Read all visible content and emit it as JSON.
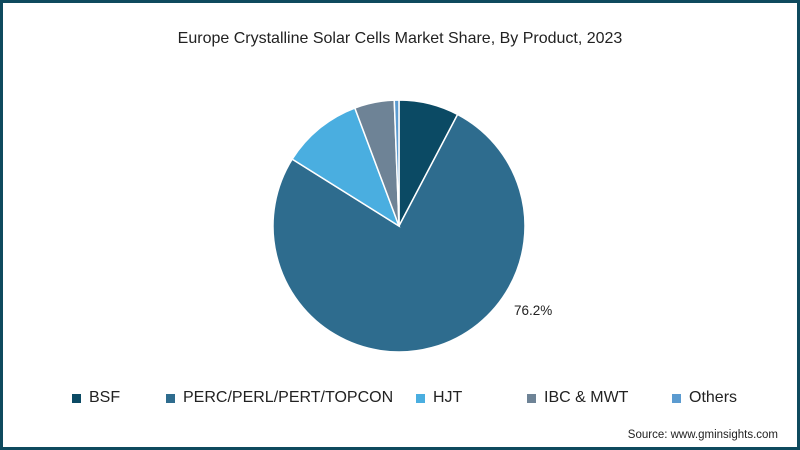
{
  "chart_data": {
    "type": "pie",
    "title": "Europe Crystalline Solar Cells Market Share, By Product, 2023",
    "categories": [
      "BSF",
      "PERC/PERL/PERT/TOPCON",
      "HJT",
      "IBC & MWT",
      "Others"
    ],
    "values": [
      7.7,
      76.2,
      10.4,
      5.1,
      0.6
    ],
    "colors": [
      "#0b4a64",
      "#2e6c8e",
      "#4aaee0",
      "#6e8396",
      "#5b9bd0"
    ],
    "data_labels": [
      {
        "category": "PERC/PERL/PERT/TOPCON",
        "text": "76.2%"
      }
    ],
    "legend_position": "bottom",
    "start_angle_deg": 0,
    "direction": "clockwise"
  },
  "title": "Europe Crystalline Solar Cells Market Share, By Product, 2023",
  "legend": [
    {
      "label": "BSF",
      "color": "#0b4a64"
    },
    {
      "label": "PERC/PERL/PERT/TOPCON",
      "color": "#2e6c8e"
    },
    {
      "label": "HJT",
      "color": "#4aaee0"
    },
    {
      "label": "IBC & MWT",
      "color": "#6e8396"
    },
    {
      "label": "Others",
      "color": "#5b9bd0"
    }
  ],
  "data_label": "76.2%",
  "source": "Source: www.gminsights.com",
  "frame_color": "#0e4a5e"
}
